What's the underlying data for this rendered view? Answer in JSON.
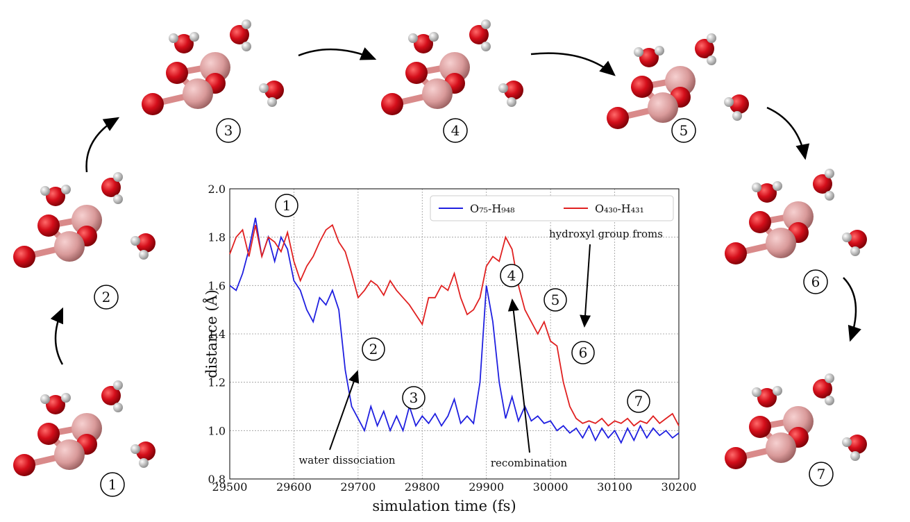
{
  "chart_data": {
    "type": "line",
    "xlabel": "simulation time (fs)",
    "ylabel": "distance (Å)",
    "x": [
      29500,
      29510,
      29520,
      29530,
      29540,
      29550,
      29560,
      29570,
      29580,
      29590,
      29600,
      29610,
      29620,
      29630,
      29640,
      29650,
      29660,
      29670,
      29680,
      29690,
      29700,
      29710,
      29720,
      29730,
      29740,
      29750,
      29760,
      29770,
      29780,
      29790,
      29800,
      29810,
      29820,
      29830,
      29840,
      29850,
      29860,
      29870,
      29880,
      29890,
      29900,
      29910,
      29920,
      29930,
      29940,
      29950,
      29960,
      29970,
      29980,
      29990,
      30000,
      30010,
      30020,
      30030,
      30040,
      30050,
      30060,
      30070,
      30080,
      30090,
      30100,
      30110,
      30120,
      30130,
      30140,
      30150,
      30160,
      30170,
      30180,
      30190,
      30200
    ],
    "series": [
      {
        "name": "O₇₅-H₉₄₈",
        "color": "#1f1fe0",
        "values": [
          1.6,
          1.58,
          1.65,
          1.75,
          1.88,
          1.72,
          1.8,
          1.7,
          1.8,
          1.75,
          1.62,
          1.58,
          1.5,
          1.45,
          1.55,
          1.52,
          1.58,
          1.5,
          1.25,
          1.1,
          1.05,
          1.0,
          1.1,
          1.02,
          1.08,
          1.0,
          1.06,
          1.0,
          1.1,
          1.02,
          1.06,
          1.03,
          1.07,
          1.02,
          1.06,
          1.13,
          1.03,
          1.06,
          1.03,
          1.2,
          1.6,
          1.45,
          1.2,
          1.05,
          1.14,
          1.04,
          1.1,
          1.04,
          1.06,
          1.03,
          1.04,
          1.0,
          1.02,
          0.99,
          1.01,
          0.97,
          1.02,
          0.96,
          1.01,
          0.97,
          1.0,
          0.95,
          1.01,
          0.96,
          1.02,
          0.97,
          1.01,
          0.98,
          1.0,
          0.97,
          0.99
        ]
      },
      {
        "name": "O₄₃₀-H₄₃₁",
        "color": "#e02020",
        "values": [
          1.73,
          1.8,
          1.83,
          1.72,
          1.85,
          1.72,
          1.8,
          1.78,
          1.74,
          1.82,
          1.7,
          1.62,
          1.68,
          1.72,
          1.78,
          1.83,
          1.85,
          1.78,
          1.74,
          1.65,
          1.55,
          1.58,
          1.62,
          1.6,
          1.56,
          1.62,
          1.58,
          1.55,
          1.52,
          1.48,
          1.44,
          1.55,
          1.55,
          1.6,
          1.58,
          1.65,
          1.55,
          1.48,
          1.5,
          1.55,
          1.68,
          1.72,
          1.7,
          1.8,
          1.75,
          1.6,
          1.5,
          1.45,
          1.4,
          1.45,
          1.37,
          1.35,
          1.2,
          1.1,
          1.05,
          1.03,
          1.04,
          1.03,
          1.05,
          1.02,
          1.04,
          1.03,
          1.05,
          1.02,
          1.04,
          1.03,
          1.06,
          1.03,
          1.05,
          1.07,
          1.02
        ]
      }
    ],
    "xlim": [
      29500,
      30200
    ],
    "xticks": [
      29500,
      29600,
      29700,
      29800,
      29900,
      30000,
      30100,
      30200
    ],
    "ylim": [
      0.8,
      2.0
    ],
    "yticks": [
      {
        "value": 0.8,
        "label": "0.8"
      },
      {
        "value": 1.0,
        "label": "1.0"
      },
      1.2,
      1.4,
      1.6,
      1.8,
      {
        "value": 2.0,
        "label": "2.0"
      }
    ],
    "grid": true,
    "legend": "upper right",
    "annotations": [
      "1",
      "2",
      "3",
      "4",
      "5",
      "6",
      "7",
      "water dissociation",
      "recombination",
      "hydroxyl group froms"
    ]
  },
  "structures": [
    "1",
    "2",
    "3",
    "4",
    "5",
    "6",
    "7"
  ]
}
